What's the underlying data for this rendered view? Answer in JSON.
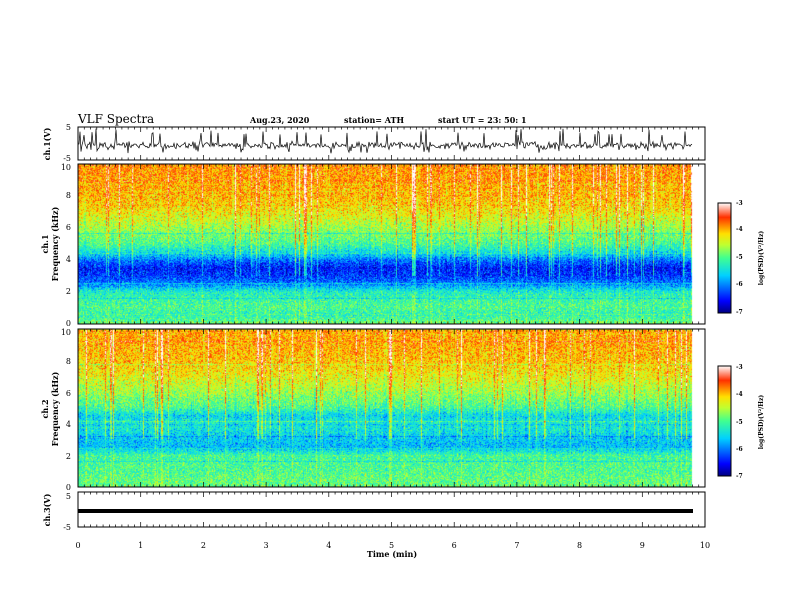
{
  "header": {
    "title": "VLF Spectra",
    "date": "Aug.23, 2020",
    "station": "station= ATH",
    "start": "start  UT  =   23: 50: 1"
  },
  "chart_data": [
    {
      "id": "ch1-waveform",
      "type": "line",
      "ylabel": "ch.1(V)",
      "ylim": [
        -5,
        5
      ],
      "y_ticks": [
        "5",
        "-5"
      ],
      "xlim": [
        0,
        10
      ],
      "x_units": "min",
      "data_extent_min": 9.8,
      "baseline_v": -0.5,
      "spikes_v": [
        2.5,
        4.5
      ]
    },
    {
      "id": "ch1-spectrogram",
      "type": "heatmap",
      "ylabel_channel": "ch.1",
      "ylabel": "Frequency  (kHz)",
      "ylim": [
        0,
        10
      ],
      "y_ticks": [
        "0",
        "2",
        "4",
        "6",
        "8",
        "10"
      ],
      "xlim": [
        0,
        10
      ],
      "colorbar": {
        "label": "log(PSD)(V²/Hz)",
        "range": [
          -7,
          -3
        ],
        "ticks": [
          "-3",
          "-4",
          "-5",
          "-6",
          "-7"
        ],
        "colormap": "jet"
      },
      "profile_log_psd": [
        [
          0.0,
          -4.8
        ],
        [
          0.5,
          -5.2
        ],
        [
          1.0,
          -5.0
        ],
        [
          1.5,
          -5.1
        ],
        [
          2.0,
          -5.3
        ],
        [
          2.5,
          -6.0
        ],
        [
          3.0,
          -6.3
        ],
        [
          3.5,
          -6.4
        ],
        [
          4.0,
          -6.0
        ],
        [
          4.5,
          -5.4
        ],
        [
          5.0,
          -5.0
        ],
        [
          6.0,
          -4.6
        ],
        [
          7.0,
          -4.2
        ],
        [
          8.0,
          -3.95
        ],
        [
          9.0,
          -3.85
        ],
        [
          10.0,
          -3.8
        ]
      ]
    },
    {
      "id": "ch2-spectrogram",
      "type": "heatmap",
      "ylabel_channel": "ch.2",
      "ylabel": "Frequency  (kHz)",
      "ylim": [
        0,
        10
      ],
      "y_ticks": [
        "0",
        "2",
        "4",
        "6",
        "8",
        "10"
      ],
      "xlim": [
        0,
        10
      ],
      "colorbar": {
        "label": "log(PSD)(V²/Hz)",
        "range": [
          -7,
          -3
        ],
        "ticks": [
          "-3",
          "-4",
          "-5",
          "-6",
          "-7"
        ],
        "colormap": "jet"
      },
      "profile_log_psd": [
        [
          0.0,
          -4.9
        ],
        [
          0.5,
          -4.9
        ],
        [
          1.0,
          -5.0
        ],
        [
          1.5,
          -5.0
        ],
        [
          2.0,
          -5.1
        ],
        [
          2.5,
          -5.7
        ],
        [
          3.0,
          -5.6
        ],
        [
          3.5,
          -5.4
        ],
        [
          4.0,
          -5.3
        ],
        [
          4.5,
          -5.5
        ],
        [
          5.0,
          -5.0
        ],
        [
          6.0,
          -4.6
        ],
        [
          7.0,
          -4.25
        ],
        [
          8.0,
          -4.0
        ],
        [
          9.0,
          -3.9
        ],
        [
          10.0,
          -3.85
        ]
      ]
    },
    {
      "id": "ch3-waveform",
      "type": "line",
      "ylabel": "ch.3(V)",
      "ylim": [
        -5,
        5
      ],
      "y_ticks": [
        "5",
        "-5"
      ],
      "xlim": [
        0,
        10
      ],
      "data_extent_min": 9.8,
      "baseline_v": 0,
      "xlabel": "Time  (min)",
      "x_ticks": [
        "0",
        "1",
        "2",
        "3",
        "4",
        "5",
        "6",
        "7",
        "8",
        "9",
        "10"
      ]
    }
  ]
}
